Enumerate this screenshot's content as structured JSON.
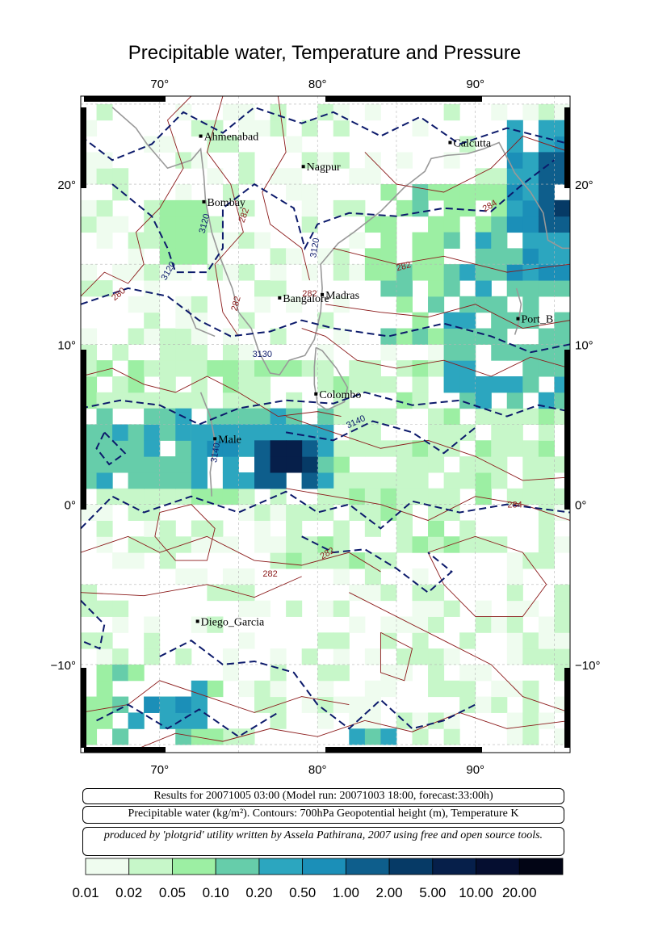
{
  "title": "Precipitable water, Temperature and Pressure",
  "axes": {
    "lon_ticks": [
      "70°",
      "80°",
      "90°"
    ],
    "lat_ticks": [
      "20°",
      "10°",
      "0°",
      "−10°"
    ],
    "lon_range": [
      65,
      96
    ],
    "lat_range": [
      -15.5,
      25.5
    ]
  },
  "cities": [
    {
      "name": "Ahmenabad",
      "lon": 72.6,
      "lat": 23.0
    },
    {
      "name": "Calcutta",
      "lon": 88.4,
      "lat": 22.6
    },
    {
      "name": "Nagpur",
      "lon": 79.1,
      "lat": 21.1
    },
    {
      "name": "Bombay",
      "lon": 72.8,
      "lat": 18.9
    },
    {
      "name": "Madras",
      "lon": 80.3,
      "lat": 13.1
    },
    {
      "name": "Bangalore",
      "lon": 77.6,
      "lat": 12.9
    },
    {
      "name": "Port_Blair",
      "display": "Port_B",
      "lon": 92.7,
      "lat": 11.6
    },
    {
      "name": "Colombo",
      "lon": 79.9,
      "lat": 6.9
    },
    {
      "name": "Male",
      "lon": 73.5,
      "lat": 4.1
    },
    {
      "name": "Diego_Garcia",
      "lon": 72.4,
      "lat": -7.3
    }
  ],
  "contour_labels": {
    "height": [
      "3120",
      "3120",
      "3120",
      "3130",
      "3140",
      "3140"
    ],
    "temperature": [
      "282",
      "282",
      "282",
      "284",
      "282",
      "284",
      "282",
      "280",
      "282"
    ]
  },
  "info": {
    "line1": "Results for 20071005 03:00 (Model run: 20071003 18:00, forecast:33:00h)",
    "line2": "Precipitable water (kg/m²).  Contours: 700hPa Geopotential height (m), Temperature K",
    "line3": "produced by 'plotgrid' utility written by Assela Pathirana, 2007 using free and open source tools."
  },
  "legend": {
    "labels": [
      "0.01",
      "0.02",
      "0.05",
      "0.10",
      "0.20",
      "0.50",
      "1.00",
      "2.00",
      "5.00",
      "10.00",
      "20.00"
    ],
    "colors": [
      "#effcef",
      "#c7f7c9",
      "#9cefa3",
      "#66cdaa",
      "#2ca6bf",
      "#1b8fb8",
      "#0e5e8c",
      "#063a66",
      "#061f4a",
      "#050e30",
      "#020515"
    ]
  },
  "colors": {
    "height_contour": "#0c1a6b",
    "temperature_contour": "#8b1a1a",
    "coastline": "#999999"
  }
}
